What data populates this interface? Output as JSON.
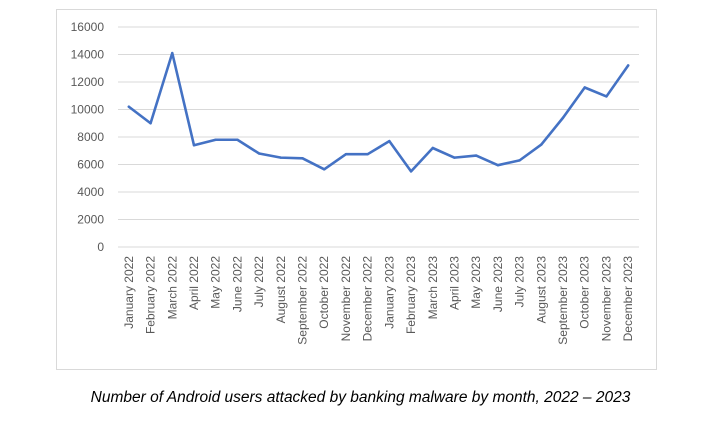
{
  "chart_data": {
    "type": "line",
    "title": "",
    "xlabel": "",
    "ylabel": "",
    "ylim": [
      0,
      16000
    ],
    "yticks": [
      0,
      2000,
      4000,
      6000,
      8000,
      10000,
      12000,
      14000,
      16000
    ],
    "grid": true,
    "legend": "none",
    "categories": [
      "January 2022",
      "February 2022",
      "March 2022",
      "April 2022",
      "May 2022",
      "June 2022",
      "July 2022",
      "August 2022",
      "September 2022",
      "October 2022",
      "November 2022",
      "December 2022",
      "January 2023",
      "February 2023",
      "March 2023",
      "April 2023",
      "May 2023",
      "June 2023",
      "July 2023",
      "August 2023",
      "September 2023",
      "October 2023",
      "November 2023",
      "December 2023"
    ],
    "series": [
      {
        "name": "Android users attacked by banking malware",
        "color": "#4472c4",
        "values": [
          10200,
          9000,
          14100,
          7400,
          7800,
          7800,
          6800,
          6500,
          6450,
          5650,
          6750,
          6750,
          7700,
          5500,
          7200,
          6500,
          6650,
          5950,
          6300,
          7450,
          9400,
          11600,
          10950,
          13200
        ]
      }
    ]
  },
  "caption": "Number of Android users attacked by banking malware by month, 2022 – 2023"
}
